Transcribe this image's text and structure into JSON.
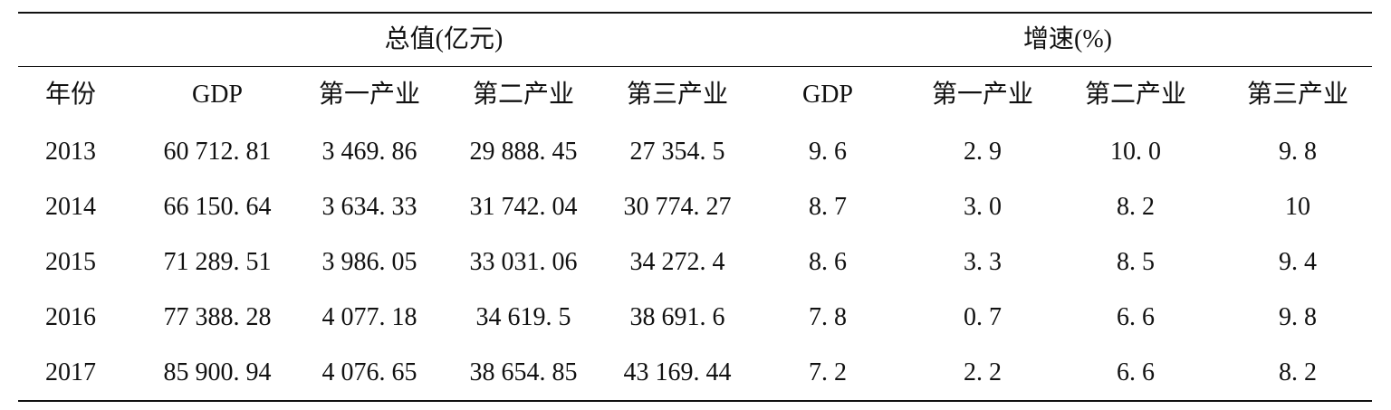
{
  "table": {
    "group_headers": [
      "总值(亿元)",
      "增速(%)"
    ],
    "columns": [
      "年份",
      "GDP",
      "第一产业",
      "第二产业",
      "第三产业",
      "GDP",
      "第一产业",
      "第二产业",
      "第三产业"
    ],
    "rows": [
      [
        "2013",
        "60 712. 81",
        "3 469. 86",
        "29 888. 45",
        "27 354. 5",
        "9. 6",
        "2. 9",
        "10. 0",
        "9. 8"
      ],
      [
        "2014",
        "66 150. 64",
        "3 634. 33",
        "31 742. 04",
        "30 774. 27",
        "8. 7",
        "3. 0",
        "8. 2",
        "10"
      ],
      [
        "2015",
        "71 289. 51",
        "3 986. 05",
        "33 031. 06",
        "34 272. 4",
        "8. 6",
        "3. 3",
        "8. 5",
        "9. 4"
      ],
      [
        "2016",
        "77 388. 28",
        "4 077. 18",
        "34 619. 5",
        "38 691. 6",
        "7. 8",
        "0. 7",
        "6. 6",
        "9. 8"
      ],
      [
        "2017",
        "85 900. 94",
        "4 076. 65",
        "38 654. 85",
        "43 169. 44",
        "7. 2",
        "2. 2",
        "6. 6",
        "8. 2"
      ]
    ]
  }
}
